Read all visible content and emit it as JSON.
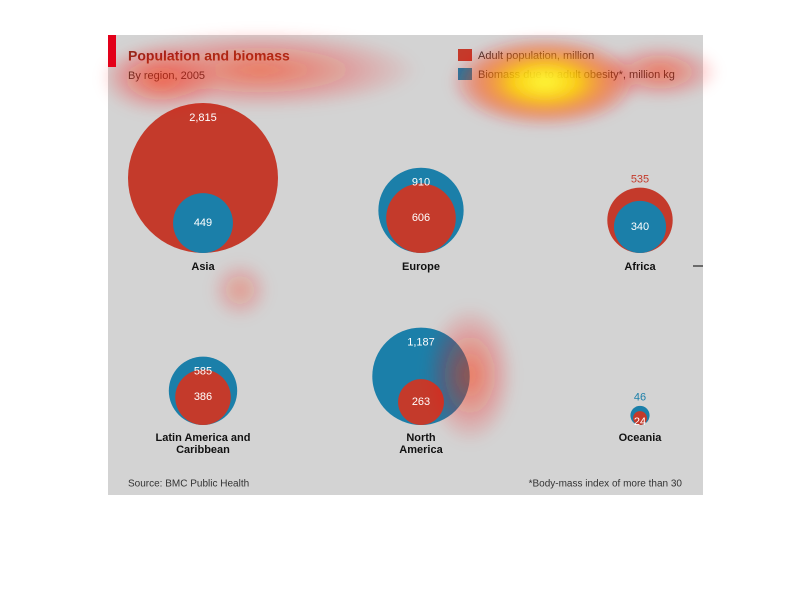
{
  "chart_data": {
    "type": "bubble",
    "title": "Population and biomass",
    "subtitle": "By region, 2005",
    "categories": [
      "Asia",
      "Europe",
      "Africa",
      "Latin America and Caribbean",
      "North America",
      "Oceania"
    ],
    "series": [
      {
        "name": "Adult population, million",
        "color": "#c43a2b",
        "values": [
          2815,
          606,
          535,
          386,
          263,
          24
        ],
        "value_labels": [
          "2,815",
          "606",
          "535",
          "386",
          "263",
          "24"
        ]
      },
      {
        "name": "Biomass due to adult obesity*, million kg",
        "color": "#1b7fa9",
        "values": [
          449,
          910,
          340,
          585,
          1187,
          46
        ],
        "value_labels": [
          "449",
          "910",
          "340",
          "585",
          "1,187",
          "46"
        ]
      }
    ],
    "source": "Source: BMC Public Health",
    "footnote": "*Body-mass index of more than 30"
  }
}
